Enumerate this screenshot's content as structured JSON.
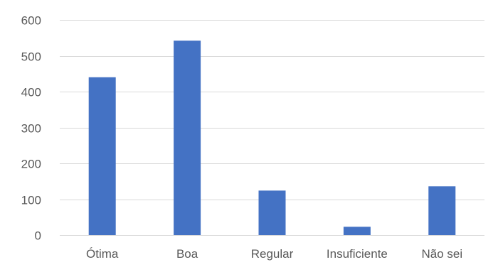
{
  "chart_data": {
    "type": "bar",
    "title": "",
    "xlabel": "",
    "ylabel": "",
    "categories": [
      "Ótima",
      "Boa",
      "Regular",
      "Insuficiente",
      "Não sei"
    ],
    "values": [
      440,
      542,
      124,
      23,
      136
    ],
    "ylim": [
      0,
      600
    ],
    "yticks": [
      0,
      100,
      200,
      300,
      400,
      500,
      600
    ],
    "grid": true,
    "legend": "none",
    "colors": {
      "bar": "#4472C4",
      "grid": "#D9D9D9",
      "text": "#595959"
    }
  }
}
